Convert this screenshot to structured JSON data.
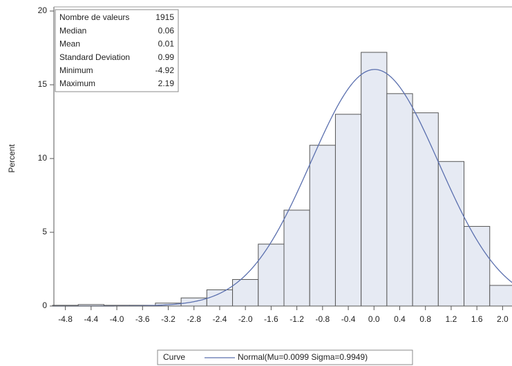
{
  "chart_data": {
    "type": "histogram",
    "y_label": "Percent",
    "bins": [
      -5.0,
      -4.6,
      -4.2,
      -3.8,
      -3.4,
      -3.0,
      -2.6,
      -2.2,
      -1.8,
      -1.4,
      -1.0,
      -0.6,
      -0.2,
      0.2,
      0.6,
      1.0,
      1.4,
      1.8,
      2.2
    ],
    "values": [
      0.05,
      0.1,
      0.05,
      0.05,
      0.2,
      0.55,
      1.1,
      1.8,
      4.2,
      6.5,
      10.9,
      13.0,
      17.2,
      14.4,
      13.1,
      9.8,
      5.4,
      1.4
    ],
    "color": "#e6eaf3",
    "xlim": [
      -5.0,
      2.2
    ],
    "ylim": [
      0,
      20
    ],
    "xticks": [
      -4.8,
      -4.4,
      {
        "value": -4,
        "label": "-4.0"
      },
      -3.6,
      -3.2,
      -2.8,
      -2.4,
      {
        "value": -2,
        "label": "-2.0"
      },
      -1.6,
      -1.2,
      -0.8,
      -0.4,
      {
        "value": 0,
        "label": "0.0"
      },
      0.4,
      0.8,
      1.2,
      1.6,
      {
        "value": 2,
        "label": "2.0"
      }
    ],
    "yticks": [
      0,
      5,
      10,
      15,
      20
    ],
    "curve": {
      "name": "Normal(Mu=0.0099 Sigma=0.9949)",
      "mu": 0.0099,
      "sigma": 0.9949,
      "color": "#5a6fae"
    },
    "legend_title": "Curve",
    "stats": [
      [
        "Nombre de valeurs",
        "1915"
      ],
      [
        "Median",
        "0.06"
      ],
      [
        "Mean",
        "0.01"
      ],
      [
        "Standard Deviation",
        "0.99"
      ],
      [
        "Minimum",
        "-4.92"
      ],
      [
        "Maximum",
        "2.19"
      ]
    ]
  }
}
